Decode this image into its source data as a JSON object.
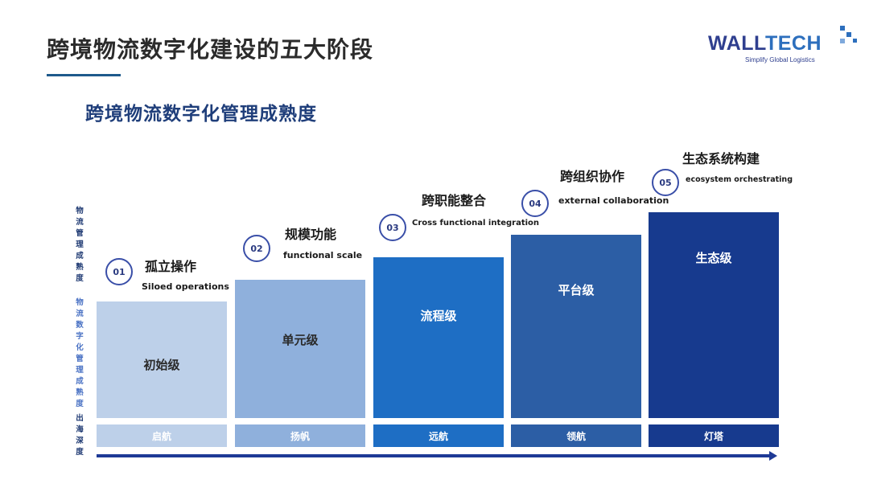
{
  "slide": {
    "title": "跨境物流数字化建设的五大阶段",
    "subtitle": "跨境物流数字化管理成熟度"
  },
  "logo": {
    "brand_part1": "WALL",
    "brand_part2": "TECH",
    "tagline": "Simplify Global Logistics",
    "colors": {
      "wall": "#2f3f8f",
      "tech": "#2d6fbd"
    }
  },
  "axis_labels": [
    "物流管理成熟度",
    "物流数字化管理成熟度",
    "出海深度"
  ],
  "stages": [
    {
      "number": "01",
      "name_cn": "孤立操作",
      "name_en": "Siloed operations",
      "level": "初始级",
      "footer": "启航",
      "bar_color": "#bdd0e9",
      "footer_color": "#bdd0e9",
      "level_color": "#2a2a2a"
    },
    {
      "number": "02",
      "name_cn": "规模功能",
      "name_en": "functional scale",
      "level": "单元级",
      "footer": "扬帆",
      "bar_color": "#8fb0dc",
      "footer_color": "#8fb0dc",
      "level_color": "#2a2a2a"
    },
    {
      "number": "03",
      "name_cn": "跨职能整合",
      "name_en": "Cross functional integration",
      "level": "流程级",
      "footer": "远航",
      "bar_color": "#1e6ec4",
      "footer_color": "#1e6ec4",
      "level_color": "#ffffff"
    },
    {
      "number": "04",
      "name_cn": "跨组织协作",
      "name_en": "external collaboration",
      "level": "平台级",
      "footer": "领航",
      "bar_color": "#2c5ea5",
      "footer_color": "#2c5ea5",
      "level_color": "#ffffff"
    },
    {
      "number": "05",
      "name_cn": "生态系统构建",
      "name_en": "ecosystem orchestrating",
      "level": "生态级",
      "footer": "灯塔",
      "bar_color": "#173a8e",
      "footer_color": "#173a8e",
      "level_color": "#ffffff"
    }
  ]
}
